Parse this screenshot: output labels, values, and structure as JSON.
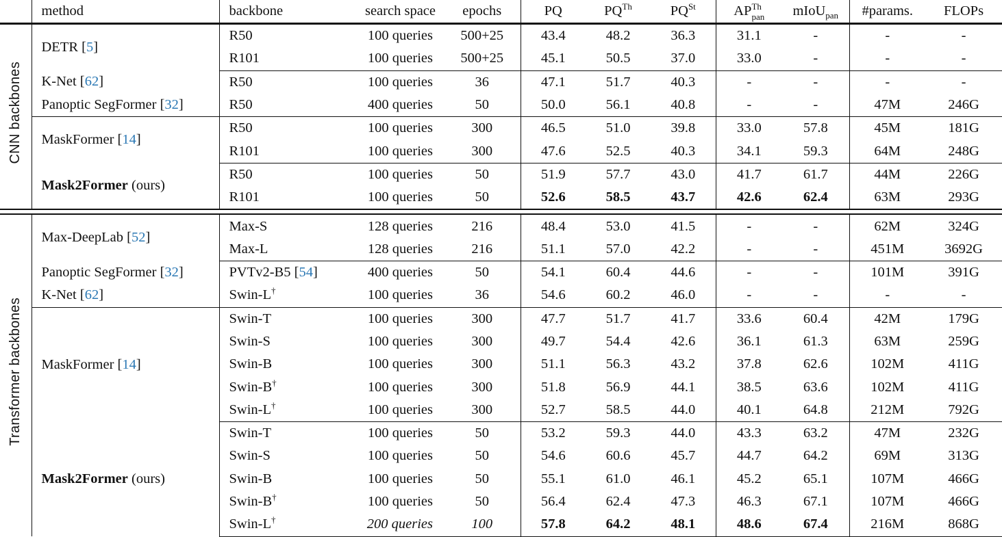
{
  "header": {
    "method": "method",
    "backbone": "backbone",
    "search_space": "search space",
    "epochs": "epochs",
    "pq": "PQ",
    "pq_th_base": "PQ",
    "pq_th_sup": "Th",
    "pq_st_base": "PQ",
    "pq_st_sup": "St",
    "ap_base": "AP",
    "ap_sup": "Th",
    "ap_sub": "pan",
    "miou_base": "mIoU",
    "miou_sub": "pan",
    "params": "#params.",
    "flops": "FLOPs"
  },
  "dagger": "†",
  "sections": [
    {
      "label": "CNN backbones",
      "groups": [
        {
          "methods": [
            {
              "name": "DETR",
              "cite": "5",
              "bold": false,
              "suffix": "",
              "rows": [
                {
                  "backbone": "R50",
                  "search": "100 queries",
                  "epochs": "500+25",
                  "pq": "43.4",
                  "pq_th": "48.2",
                  "pq_st": "36.3",
                  "ap": "31.1",
                  "miou": "-",
                  "params": "-",
                  "flops": "-"
                },
                {
                  "backbone": "R101",
                  "search": "100 queries",
                  "epochs": "500+25",
                  "pq": "45.1",
                  "pq_th": "50.5",
                  "pq_st": "37.0",
                  "ap": "33.0",
                  "miou": "-",
                  "params": "-",
                  "flops": "-"
                }
              ]
            }
          ]
        },
        {
          "methods": [
            {
              "name": "K-Net",
              "cite": "62",
              "bold": false,
              "suffix": "",
              "rows": [
                {
                  "backbone": "R50",
                  "search": "100 queries",
                  "epochs": "36",
                  "pq": "47.1",
                  "pq_th": "51.7",
                  "pq_st": "40.3",
                  "ap": "-",
                  "miou": "-",
                  "params": "-",
                  "flops": "-"
                }
              ]
            },
            {
              "name": "Panoptic SegFormer",
              "cite": "32",
              "bold": false,
              "suffix": "",
              "rows": [
                {
                  "backbone": "R50",
                  "search": "400 queries",
                  "epochs": "50",
                  "pq": "50.0",
                  "pq_th": "56.1",
                  "pq_st": "40.8",
                  "ap": "-",
                  "miou": "-",
                  "params": "47M",
                  "flops": "246G"
                }
              ]
            }
          ]
        },
        {
          "methods": [
            {
              "name": "MaskFormer",
              "cite": "14",
              "bold": false,
              "suffix": "",
              "rows": [
                {
                  "backbone": "R50",
                  "search": "100 queries",
                  "epochs": "300",
                  "pq": "46.5",
                  "pq_th": "51.0",
                  "pq_st": "39.8",
                  "ap": "33.0",
                  "miou": "57.8",
                  "params": "45M",
                  "flops": "181G"
                },
                {
                  "backbone": "R101",
                  "search": "100 queries",
                  "epochs": "300",
                  "pq": "47.6",
                  "pq_th": "52.5",
                  "pq_st": "40.3",
                  "ap": "34.1",
                  "miou": "59.3",
                  "params": "64M",
                  "flops": "248G"
                }
              ]
            }
          ]
        },
        {
          "methods": [
            {
              "name": "Mask2Former",
              "cite": "",
              "bold": true,
              "suffix": "(ours)",
              "rows": [
                {
                  "backbone": "R50",
                  "search": "100 queries",
                  "epochs": "50",
                  "pq": "51.9",
                  "pq_th": "57.7",
                  "pq_st": "43.0",
                  "ap": "41.7",
                  "miou": "61.7",
                  "params": "44M",
                  "flops": "226G"
                },
                {
                  "backbone": "R101",
                  "search": "100 queries",
                  "epochs": "50",
                  "pq": "52.6",
                  "pq_th": "58.5",
                  "pq_st": "43.7",
                  "ap": "42.6",
                  "miou": "62.4",
                  "params": "63M",
                  "flops": "293G",
                  "best": [
                    "pq",
                    "pq_th",
                    "pq_st",
                    "ap",
                    "miou"
                  ]
                }
              ]
            }
          ]
        }
      ]
    },
    {
      "label": "Transformer backbones",
      "groups": [
        {
          "methods": [
            {
              "name": "Max-DeepLab",
              "cite": "52",
              "bold": false,
              "suffix": "",
              "rows": [
                {
                  "backbone": "Max-S",
                  "search": "128 queries",
                  "epochs": "216",
                  "pq": "48.4",
                  "pq_th": "53.0",
                  "pq_st": "41.5",
                  "ap": "-",
                  "miou": "-",
                  "params": "62M",
                  "flops": "324G"
                },
                {
                  "backbone": "Max-L",
                  "search": "128 queries",
                  "epochs": "216",
                  "pq": "51.1",
                  "pq_th": "57.0",
                  "pq_st": "42.2",
                  "ap": "-",
                  "miou": "-",
                  "params": "451M",
                  "flops": "3692G"
                }
              ]
            }
          ]
        },
        {
          "methods": [
            {
              "name": "Panoptic SegFormer",
              "cite": "32",
              "bold": false,
              "suffix": "",
              "rows": [
                {
                  "backbone": "PVTv2-B5",
                  "backbone_cite": "54",
                  "search": "400 queries",
                  "epochs": "50",
                  "pq": "54.1",
                  "pq_th": "60.4",
                  "pq_st": "44.6",
                  "ap": "-",
                  "miou": "-",
                  "params": "101M",
                  "flops": "391G"
                }
              ]
            },
            {
              "name": "K-Net",
              "cite": "62",
              "bold": false,
              "suffix": "",
              "rows": [
                {
                  "backbone": "Swin-L",
                  "dagger": true,
                  "search": "100 queries",
                  "epochs": "36",
                  "pq": "54.6",
                  "pq_th": "60.2",
                  "pq_st": "46.0",
                  "ap": "-",
                  "miou": "-",
                  "params": "-",
                  "flops": "-"
                }
              ]
            }
          ]
        },
        {
          "methods": [
            {
              "name": "MaskFormer",
              "cite": "14",
              "bold": false,
              "suffix": "",
              "rows": [
                {
                  "backbone": "Swin-T",
                  "search": "100 queries",
                  "epochs": "300",
                  "pq": "47.7",
                  "pq_th": "51.7",
                  "pq_st": "41.7",
                  "ap": "33.6",
                  "miou": "60.4",
                  "params": "42M",
                  "flops": "179G"
                },
                {
                  "backbone": "Swin-S",
                  "search": "100 queries",
                  "epochs": "300",
                  "pq": "49.7",
                  "pq_th": "54.4",
                  "pq_st": "42.6",
                  "ap": "36.1",
                  "miou": "61.3",
                  "params": "63M",
                  "flops": "259G"
                },
                {
                  "backbone": "Swin-B",
                  "search": "100 queries",
                  "epochs": "300",
                  "pq": "51.1",
                  "pq_th": "56.3",
                  "pq_st": "43.2",
                  "ap": "37.8",
                  "miou": "62.6",
                  "params": "102M",
                  "flops": "411G"
                },
                {
                  "backbone": "Swin-B",
                  "dagger": true,
                  "search": "100 queries",
                  "epochs": "300",
                  "pq": "51.8",
                  "pq_th": "56.9",
                  "pq_st": "44.1",
                  "ap": "38.5",
                  "miou": "63.6",
                  "params": "102M",
                  "flops": "411G"
                },
                {
                  "backbone": "Swin-L",
                  "dagger": true,
                  "search": "100 queries",
                  "epochs": "300",
                  "pq": "52.7",
                  "pq_th": "58.5",
                  "pq_st": "44.0",
                  "ap": "40.1",
                  "miou": "64.8",
                  "params": "212M",
                  "flops": "792G"
                }
              ]
            }
          ]
        },
        {
          "methods": [
            {
              "name": "Mask2Former",
              "cite": "",
              "bold": true,
              "suffix": "(ours)",
              "rows": [
                {
                  "backbone": "Swin-T",
                  "search": "100 queries",
                  "epochs": "50",
                  "pq": "53.2",
                  "pq_th": "59.3",
                  "pq_st": "44.0",
                  "ap": "43.3",
                  "miou": "63.2",
                  "params": "47M",
                  "flops": "232G"
                },
                {
                  "backbone": "Swin-S",
                  "search": "100 queries",
                  "epochs": "50",
                  "pq": "54.6",
                  "pq_th": "60.6",
                  "pq_st": "45.7",
                  "ap": "44.7",
                  "miou": "64.2",
                  "params": "69M",
                  "flops": "313G"
                },
                {
                  "backbone": "Swin-B",
                  "search": "100 queries",
                  "epochs": "50",
                  "pq": "55.1",
                  "pq_th": "61.0",
                  "pq_st": "46.1",
                  "ap": "45.2",
                  "miou": "65.1",
                  "params": "107M",
                  "flops": "466G"
                },
                {
                  "backbone": "Swin-B",
                  "dagger": true,
                  "search": "100 queries",
                  "epochs": "50",
                  "pq": "56.4",
                  "pq_th": "62.4",
                  "pq_st": "47.3",
                  "ap": "46.3",
                  "miou": "67.1",
                  "params": "107M",
                  "flops": "466G"
                },
                {
                  "backbone": "Swin-L",
                  "dagger": true,
                  "search": "200 queries",
                  "epochs": "100",
                  "pq": "57.8",
                  "pq_th": "64.2",
                  "pq_st": "48.1",
                  "ap": "48.6",
                  "miou": "67.4",
                  "params": "216M",
                  "flops": "868G",
                  "best": [
                    "pq",
                    "pq_th",
                    "pq_st",
                    "ap",
                    "miou"
                  ],
                  "italic": [
                    "search",
                    "epochs"
                  ]
                }
              ]
            }
          ]
        }
      ]
    }
  ]
}
